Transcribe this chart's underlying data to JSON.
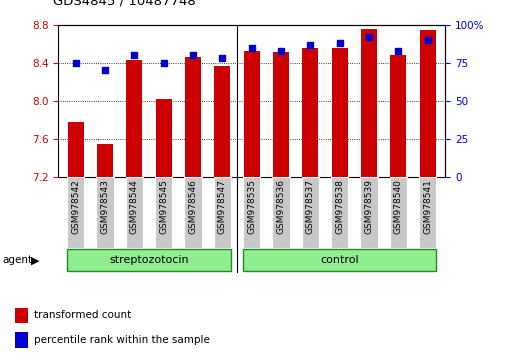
{
  "title": "GDS4845 / 10487748",
  "samples": [
    "GSM978542",
    "GSM978543",
    "GSM978544",
    "GSM978545",
    "GSM978546",
    "GSM978547",
    "GSM978535",
    "GSM978536",
    "GSM978537",
    "GSM978538",
    "GSM978539",
    "GSM978540",
    "GSM978541"
  ],
  "red_values": [
    7.78,
    7.55,
    8.43,
    8.02,
    8.46,
    8.37,
    8.52,
    8.51,
    8.56,
    8.56,
    8.76,
    8.48,
    8.75
  ],
  "blue_pct": [
    75,
    70,
    80,
    75,
    80,
    78,
    85,
    83,
    87,
    88,
    92,
    83,
    90
  ],
  "group1_label": "streptozotocin",
  "group1_range": [
    0,
    5
  ],
  "group2_label": "control",
  "group2_range": [
    6,
    12
  ],
  "sep_index": 6,
  "ylim": [
    7.2,
    8.8
  ],
  "yticks": [
    7.2,
    7.6,
    8.0,
    8.4,
    8.8
  ],
  "y2lim": [
    0,
    100
  ],
  "y2ticks": [
    0,
    25,
    50,
    75,
    100
  ],
  "y2ticklabels": [
    "0",
    "25",
    "50",
    "75",
    "100%"
  ],
  "bar_color": "#CC0000",
  "dot_color": "#0000CC",
  "bar_bottom": 7.2,
  "bar_width": 0.55,
  "group_color": "#90EE90",
  "group_edge_color": "#228B22",
  "tick_bg_color": "#C8C8C8",
  "agent_label": "agent",
  "legend_items": [
    {
      "color": "#CC0000",
      "label": "transformed count"
    },
    {
      "color": "#0000CC",
      "label": "percentile rank within the sample"
    }
  ]
}
